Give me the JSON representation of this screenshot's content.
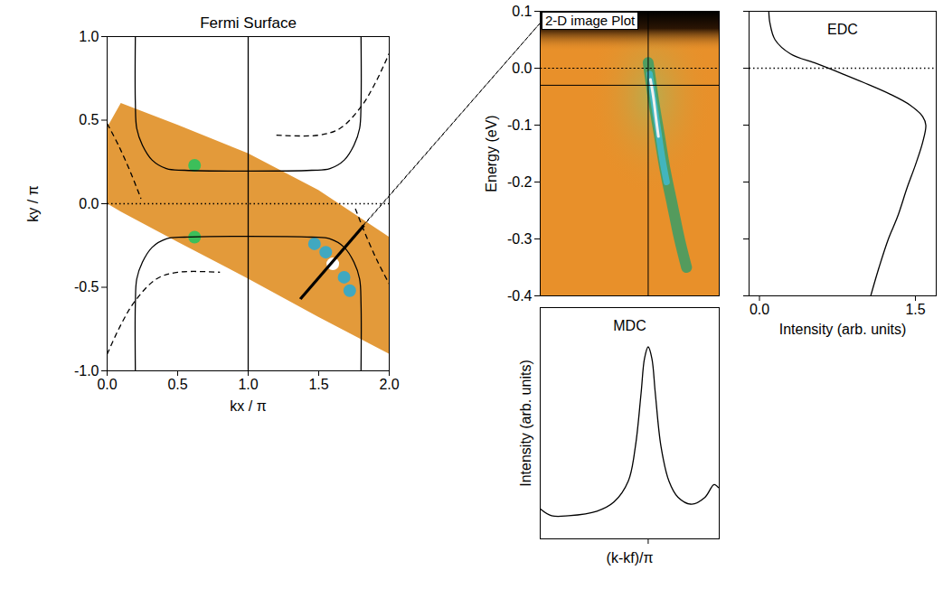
{
  "chart_data": [
    {
      "type": "map",
      "title": "Fermi Surface",
      "xlabel": "kx / π",
      "ylabel": "ky / π",
      "xlim": [
        0,
        2
      ],
      "ylim": [
        -1,
        1
      ],
      "xticks": [
        {
          "value": 0,
          "label": "0.0"
        },
        0.5,
        {
          "value": 1,
          "label": "1.0"
        },
        1.5,
        {
          "value": 2,
          "label": "2.0"
        }
      ],
      "yticks": [
        {
          "value": -1,
          "label": "-1.0"
        },
        -0.5,
        {
          "value": 0,
          "label": "0.0"
        },
        0.5,
        {
          "value": 1,
          "label": "1.0"
        }
      ],
      "series": [
        {
          "type": "area",
          "color": "#e39a3a",
          "x": [
            0,
            0.1,
            0.5,
            1,
            1.5,
            2
          ],
          "y1": [
            0.0,
            -0.05,
            -0.23,
            -0.45,
            -0.68,
            -0.9
          ],
          "y2": [
            0.45,
            0.6,
            0.47,
            0.3,
            0.08,
            -0.2
          ]
        },
        {
          "type": "scatter",
          "colors": [
            "#3cbf5a",
            "#3cbf5a",
            "#40a8c0",
            "#40a8c0",
            "#40a8c0",
            "#40a8c0",
            "#ffffff"
          ],
          "x": [
            0.62,
            0.62,
            1.47,
            1.55,
            1.68,
            1.72,
            1.6
          ],
          "y": [
            0.23,
            -0.2,
            -0.24,
            -0.29,
            -0.44,
            -0.52,
            -0.36
          ]
        },
        {
          "type": "line",
          "line_style": "solid",
          "color": "#000000",
          "x": [
            0.2,
            0.2,
            0.21,
            0.25,
            0.32,
            0.42,
            0.55,
            1.45,
            1.58,
            1.68,
            1.75,
            1.79,
            1.8,
            1.8
          ],
          "y": [
            1.0,
            0.6,
            0.45,
            0.35,
            0.26,
            0.21,
            0.2,
            0.2,
            0.21,
            0.26,
            0.35,
            0.45,
            0.6,
            1.0
          ]
        },
        {
          "type": "line",
          "line_style": "solid",
          "color": "#000000",
          "x": [
            0.2,
            0.2,
            0.21,
            0.25,
            0.32,
            0.42,
            0.55,
            1.45,
            1.58,
            1.68,
            1.75,
            1.79,
            1.8,
            1.8
          ],
          "y": [
            -1.0,
            -0.6,
            -0.45,
            -0.35,
            -0.26,
            -0.21,
            -0.2,
            -0.2,
            -0.21,
            -0.26,
            -0.35,
            -0.45,
            -0.6,
            -1.0
          ]
        },
        {
          "type": "line",
          "line_style": "dashed",
          "color": "#000000",
          "x": [
            1.2,
            1.5,
            1.65,
            1.8,
            1.9,
            2.0
          ],
          "y": [
            0.41,
            0.41,
            0.45,
            0.58,
            0.72,
            0.9
          ]
        },
        {
          "type": "line",
          "line_style": "dashed",
          "color": "#000000",
          "x": [
            0.0,
            0.1,
            0.2,
            0.35,
            0.5,
            0.8
          ],
          "y": [
            -0.9,
            -0.72,
            -0.58,
            -0.45,
            -0.41,
            -0.41
          ]
        },
        {
          "type": "line",
          "line_style": "dashed",
          "color": "#000000",
          "x": [
            0.0,
            0.08,
            0.16,
            0.24
          ],
          "y": [
            0.48,
            0.35,
            0.2,
            0.03
          ]
        },
        {
          "type": "line",
          "line_style": "dashed",
          "color": "#000000",
          "x": [
            1.76,
            1.84,
            1.92,
            2.0
          ],
          "y": [
            -0.03,
            -0.2,
            -0.35,
            -0.48
          ]
        },
        {
          "type": "line",
          "line_style": "solid",
          "color": "#000000",
          "x": [
            1,
            1
          ],
          "y": [
            -1,
            1
          ]
        },
        {
          "type": "line",
          "line_style": "dotted",
          "color": "#000000",
          "x": [
            0,
            2
          ],
          "y": [
            0,
            0
          ]
        },
        {
          "type": "line",
          "line_style": "bold",
          "color": "#000000",
          "x": [
            1.37,
            1.82
          ],
          "y": [
            -0.57,
            -0.13
          ]
        }
      ]
    },
    {
      "type": "image",
      "title": "2-D image Plot",
      "ylabel": "Energy (eV)",
      "xlim": [
        -0.38,
        0.25
      ],
      "ylim": [
        -0.4,
        0.1
      ],
      "xticks": [],
      "yticks": [
        -0.4,
        -0.3,
        -0.2,
        -0.1,
        {
          "value": 0,
          "label": "0.0"
        },
        0.1
      ],
      "tick_labels": "y",
      "series": [
        {
          "type": "line",
          "line_style": "solid",
          "color": "#2e9e6a",
          "x": [
            0,
            0.02,
            0.04,
            0.06,
            0.085,
            0.11,
            0.135
          ],
          "y": [
            0.01,
            -0.06,
            -0.12,
            -0.18,
            -0.24,
            -0.3,
            -0.35
          ]
        },
        {
          "type": "line",
          "line_style": "solid",
          "color": "#40b8c8",
          "x": [
            0.005,
            0.02,
            0.035,
            0.05,
            0.065
          ],
          "y": [
            -0.01,
            -0.06,
            -0.11,
            -0.16,
            -0.2
          ]
        },
        {
          "type": "line",
          "line_style": "solid",
          "color": "#f0f0f0",
          "x": [
            0.008,
            0.018,
            0.028,
            0.036
          ],
          "y": [
            -0.02,
            -0.05,
            -0.09,
            -0.12
          ]
        },
        {
          "type": "line",
          "line_style": "solid",
          "color": "#000000",
          "x": [
            0,
            0
          ],
          "y": [
            -0.4,
            0.1
          ]
        },
        {
          "type": "line",
          "line_style": "solid",
          "color": "#000000",
          "x": [
            -0.38,
            0.25
          ],
          "y": [
            -0.03,
            -0.03
          ]
        },
        {
          "type": "line",
          "line_style": "dotted",
          "color": "#000000",
          "x": [
            -0.38,
            0.25
          ],
          "y": [
            0,
            0
          ]
        }
      ]
    },
    {
      "type": "line",
      "title": "MDC",
      "xlabel": "(k-kf)/π",
      "ylabel": "Intensity (arb. units)",
      "xlim": [
        -0.38,
        0.25
      ],
      "ylim": [
        0,
        1
      ],
      "xticks": [
        0
      ],
      "yticks": [],
      "tick_labels": false,
      "series": [
        {
          "type": "line",
          "line_style": "solid",
          "color": "#000000",
          "x": [
            -0.38,
            -0.34,
            -0.28,
            -0.18,
            -0.12,
            -0.07,
            -0.045,
            -0.025,
            -0.013,
            0,
            0.013,
            0.025,
            0.045,
            0.073,
            0.105,
            0.153,
            0.2,
            0.232,
            0.248
          ],
          "y": [
            0.13,
            0.1,
            0.1,
            0.12,
            0.16,
            0.25,
            0.4,
            0.63,
            0.78,
            0.83,
            0.78,
            0.63,
            0.4,
            0.25,
            0.18,
            0.15,
            0.18,
            0.235,
            0.22
          ]
        }
      ]
    },
    {
      "type": "line",
      "title": "EDC",
      "xlabel": "Intensity (arb. units)",
      "xlim": [
        -0.1,
        1.7
      ],
      "ylim": [
        -0.4,
        0.1
      ],
      "xticks": [
        {
          "value": 0,
          "label": "0.0"
        },
        1.5
      ],
      "yticks": [
        -0.4,
        -0.3,
        -0.2,
        -0.1,
        0,
        0.1
      ],
      "tick_labels": "x",
      "series": [
        {
          "type": "line",
          "line_style": "solid",
          "color": "#000000",
          "x": [
            0.09,
            0.1,
            0.15,
            0.3,
            0.55,
            0.8,
            1.0,
            1.25,
            1.45,
            1.57,
            1.6,
            1.57,
            1.5,
            1.42,
            1.33,
            1.24,
            1.15,
            1.07
          ],
          "y": [
            0.1,
            0.08,
            0.05,
            0.025,
            0.008,
            -0.01,
            -0.025,
            -0.045,
            -0.065,
            -0.085,
            -0.1,
            -0.13,
            -0.17,
            -0.21,
            -0.26,
            -0.3,
            -0.35,
            -0.4
          ]
        },
        {
          "type": "line",
          "line_style": "dotted",
          "color": "#000000",
          "x": [
            -0.1,
            1.7
          ],
          "y": [
            0,
            0
          ]
        }
      ]
    }
  ]
}
